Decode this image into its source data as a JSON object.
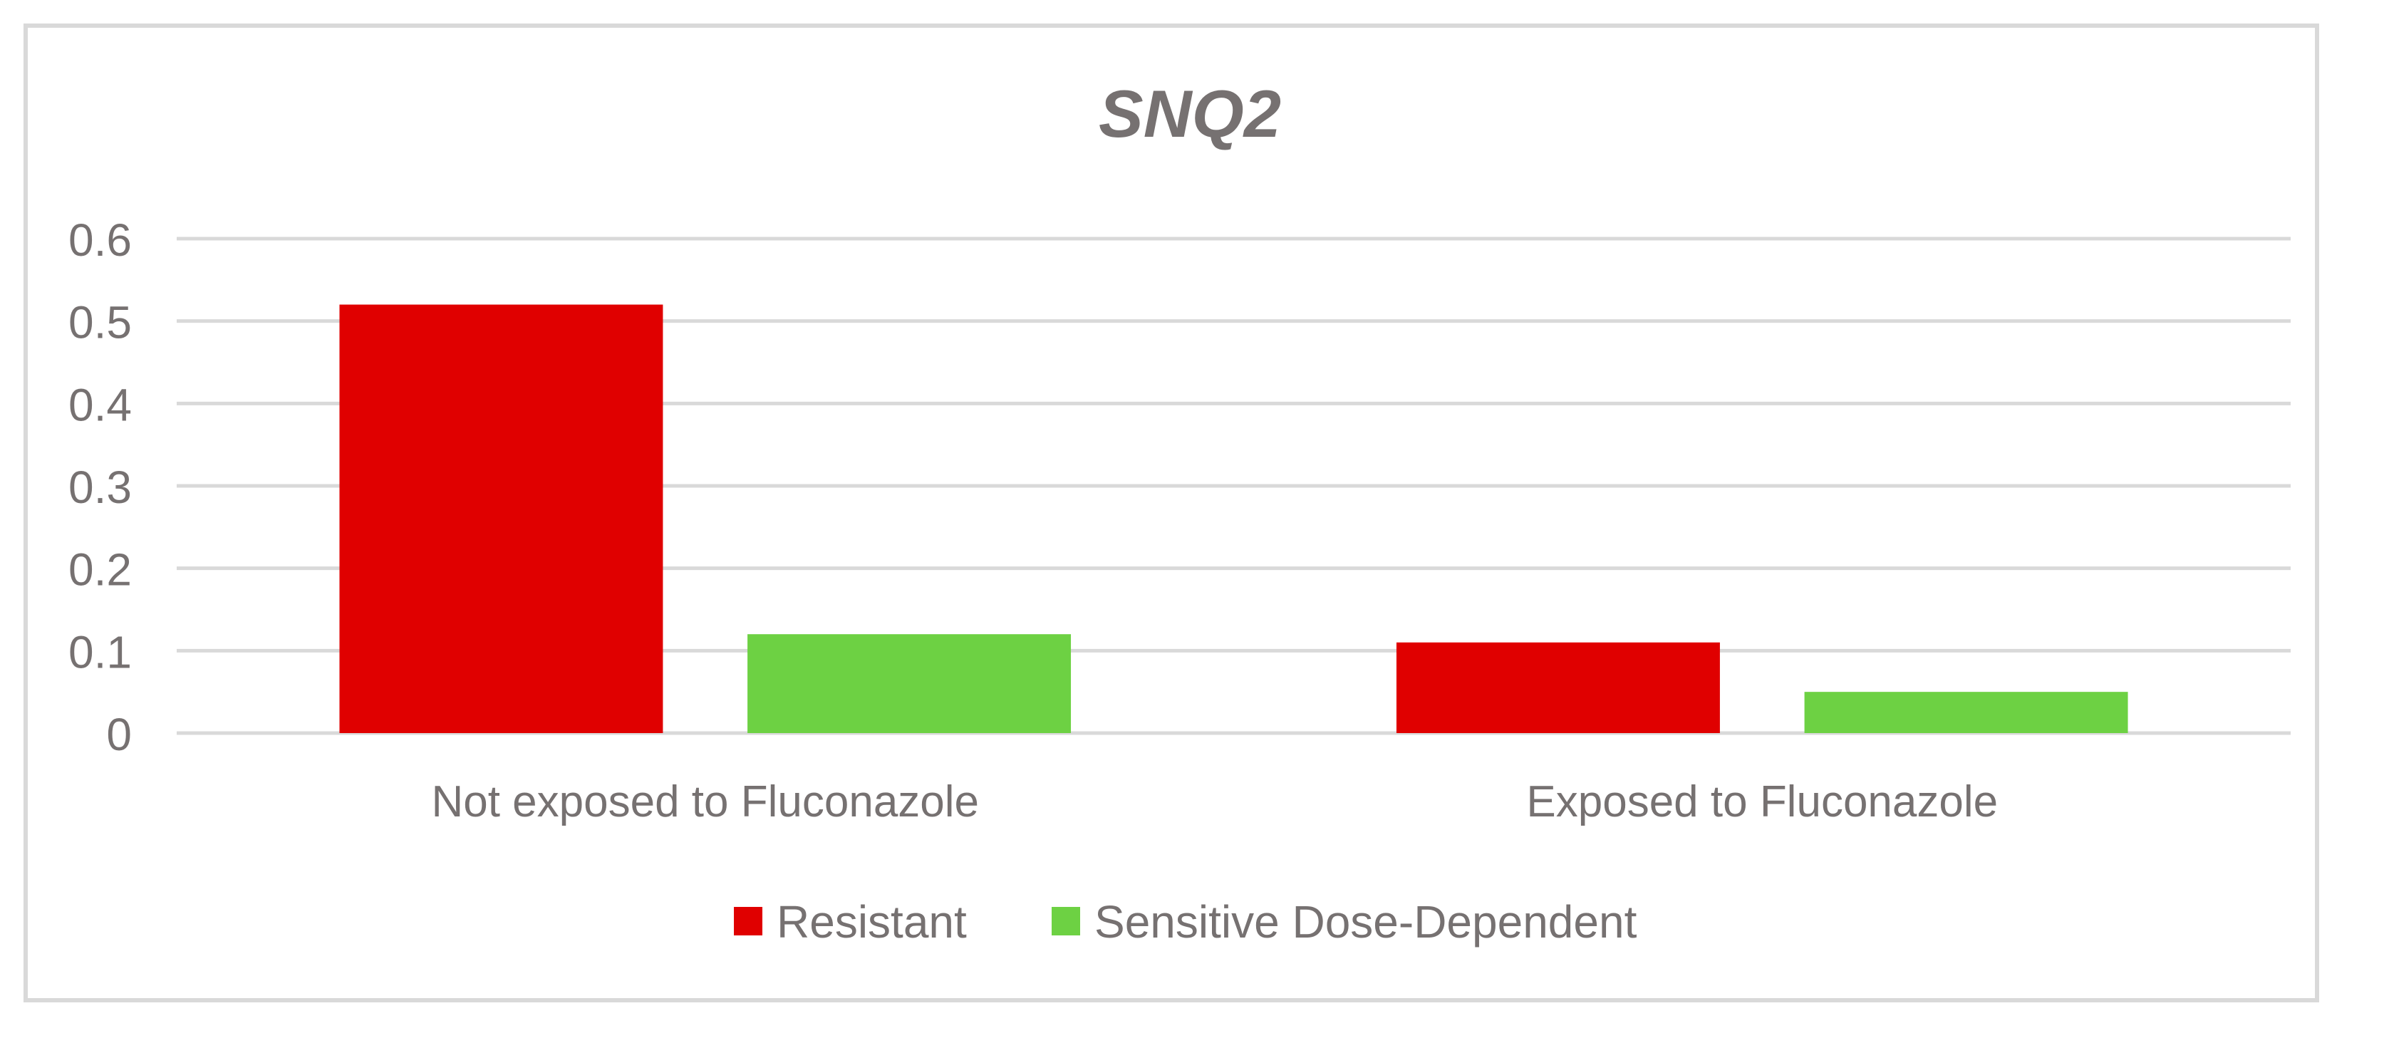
{
  "chart_data": {
    "type": "bar",
    "title": "SNQ2",
    "xlabel": "",
    "ylabel": "",
    "categories": [
      "Not exposed to Fluconazole",
      "Exposed to Fluconazole"
    ],
    "series": [
      {
        "name": "Resistant",
        "values": [
          0.52,
          0.11
        ],
        "color": "#e00000"
      },
      {
        "name": "Sensitive Dose-Dependent",
        "values": [
          0.12,
          0.05
        ],
        "color": "#6dd143"
      }
    ],
    "ylim": [
      0,
      0.6
    ],
    "yticks": [
      "0",
      "0.1",
      "0.2",
      "0.3",
      "0.4",
      "0.5",
      "0.6"
    ],
    "grid": true,
    "legend_position": "bottom"
  }
}
